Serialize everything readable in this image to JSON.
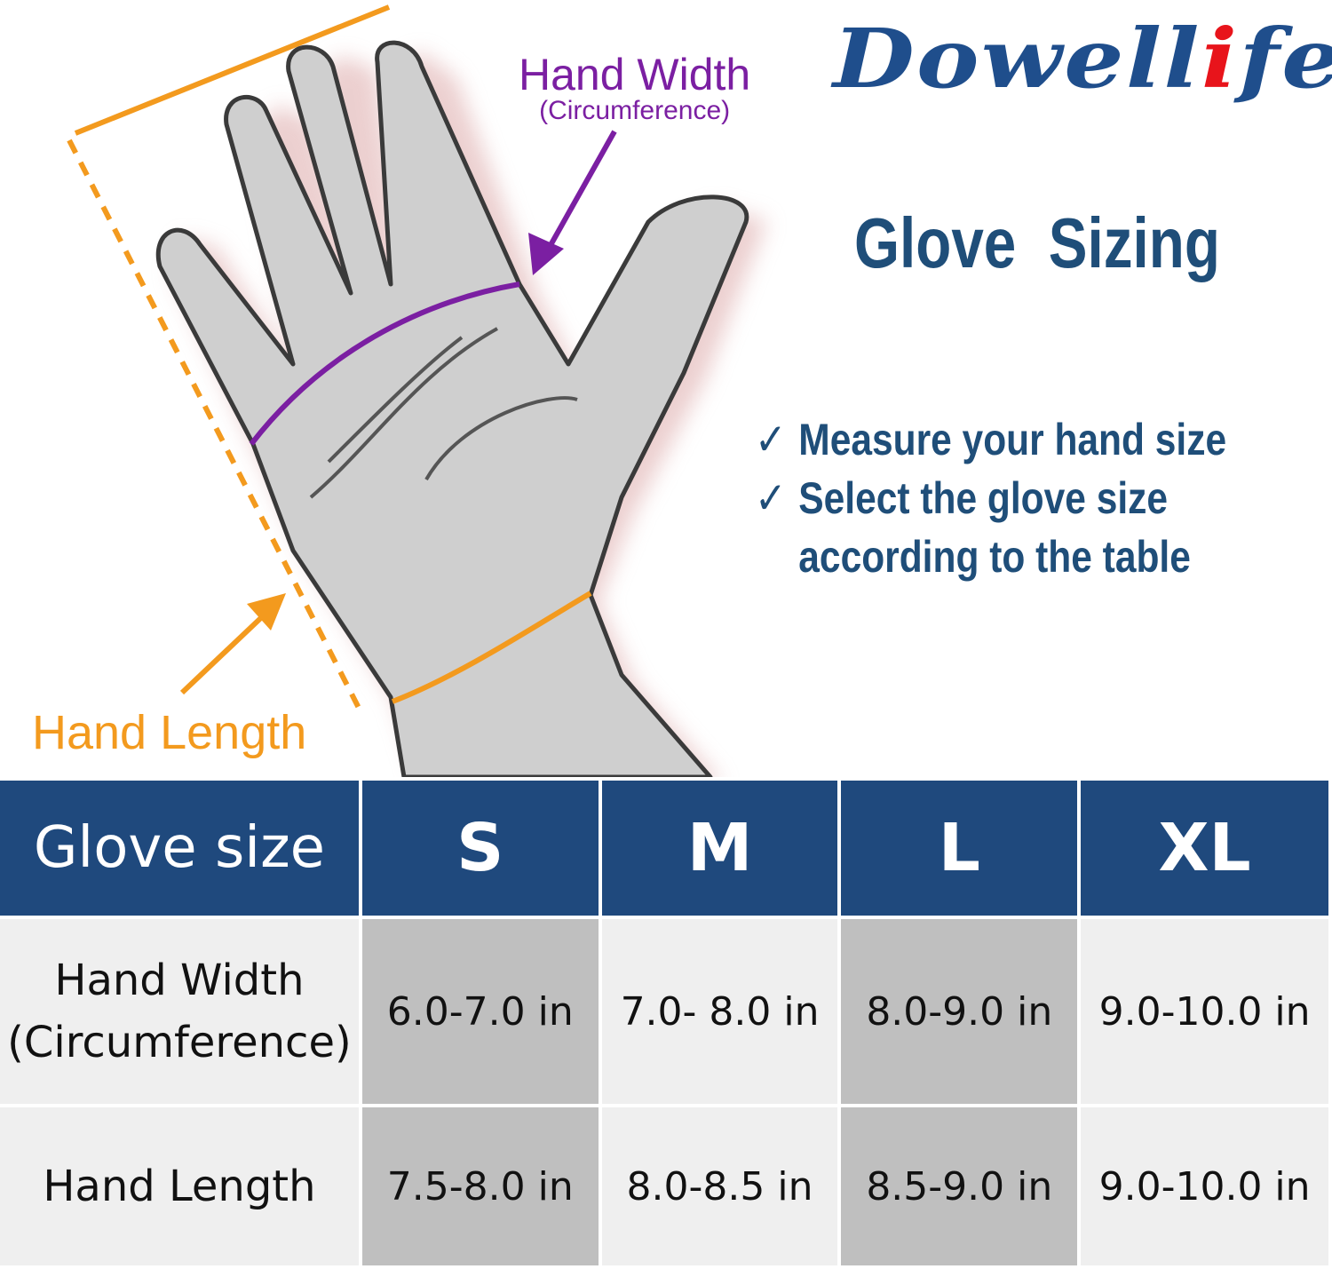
{
  "brand": {
    "logo_text": "Dowellife",
    "logo_colors": {
      "main": "#1f4e8c",
      "accent": "#e8141b"
    }
  },
  "title": "Glove  Sizing",
  "checklist": {
    "icon": "checkmark-icon",
    "items": [
      "Measure your hand size",
      "Select the glove size"
    ],
    "continuation": "according to the table"
  },
  "illustration": {
    "width_label": "Hand Width",
    "width_sublabel": "(Circumference)",
    "length_label": "Hand Length",
    "colors": {
      "width": "#7b1fa2",
      "length": "#f39a1e"
    }
  },
  "table": {
    "header": [
      "Glove size",
      "S",
      "M",
      "L",
      "XL"
    ],
    "rows": [
      {
        "label_line1": "Hand Width",
        "label_line2": "(Circumference)",
        "values": [
          "6.0-7.0 in",
          "7.0- 8.0 in",
          "8.0-9.0 in",
          "9.0-10.0 in"
        ]
      },
      {
        "label_line1": "Hand Length",
        "values": [
          "7.5-8.0 in",
          "8.0-8.5 in",
          "8.5-9.0 in",
          "9.0-10.0 in"
        ]
      }
    ],
    "colors": {
      "header": "#1f497d",
      "light": "#efefef",
      "gray": "#bfbfbf"
    }
  }
}
